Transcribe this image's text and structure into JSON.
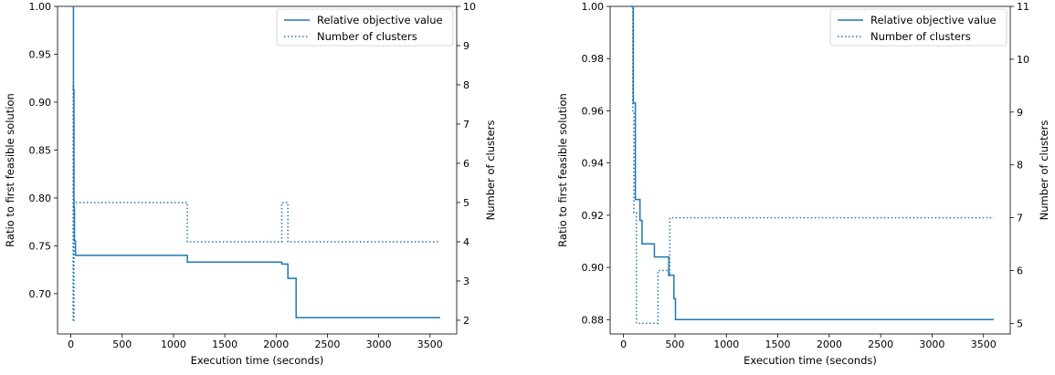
{
  "chart_data": [
    {
      "type": "line",
      "xlabel": "Execution time (seconds)",
      "ylabel": "Ratio to first feasible solution",
      "y2label": "Number of clusters",
      "xlim": [
        -130,
        3760
      ],
      "ylim": [
        0.658,
        1.0
      ],
      "y2lim": [
        1.65,
        10.0
      ],
      "xticks": [
        0,
        500,
        1000,
        1500,
        2000,
        2500,
        3000,
        3500
      ],
      "yticks": [
        0.7,
        0.75,
        0.8,
        0.85,
        0.9,
        0.95,
        1.0
      ],
      "y2ticks": [
        2,
        3,
        4,
        5,
        6,
        7,
        8,
        9,
        10
      ],
      "legend_position": "top-right",
      "color": "#1f77b4",
      "series": [
        {
          "name": "Relative objective value",
          "axis": "left",
          "style": "solid",
          "step": true,
          "points": [
            [
              20,
              1.0
            ],
            [
              25,
              0.913
            ],
            [
              30,
              0.79
            ],
            [
              35,
              0.755
            ],
            [
              45,
              0.74
            ],
            [
              1130,
              0.74
            ],
            [
              1135,
              0.733
            ],
            [
              2050,
              0.733
            ],
            [
              2055,
              0.731
            ],
            [
              2110,
              0.731
            ],
            [
              2115,
              0.716
            ],
            [
              2190,
              0.716
            ],
            [
              2195,
              0.675
            ],
            [
              3600,
              0.675
            ]
          ]
        },
        {
          "name": "Number of clusters",
          "axis": "right",
          "style": "dotted",
          "step": true,
          "points": [
            [
              20,
              2
            ],
            [
              22,
              8
            ],
            [
              26,
              2
            ],
            [
              30,
              5
            ],
            [
              1130,
              5
            ],
            [
              1135,
              4
            ],
            [
              2050,
              4
            ],
            [
              2055,
              5
            ],
            [
              2110,
              5
            ],
            [
              2115,
              4
            ],
            [
              3600,
              4
            ]
          ]
        }
      ]
    },
    {
      "type": "line",
      "xlabel": "Execution time (seconds)",
      "ylabel": "Ratio to first feasible solution",
      "y2label": "Number of clusters",
      "xlim": [
        -130,
        3760
      ],
      "ylim": [
        0.8745,
        1.0
      ],
      "y2lim": [
        4.8,
        11.0
      ],
      "xticks": [
        0,
        500,
        1000,
        1500,
        2000,
        2500,
        3000,
        3500
      ],
      "yticks": [
        0.88,
        0.9,
        0.92,
        0.94,
        0.96,
        0.98,
        1.0
      ],
      "y2ticks": [
        5,
        6,
        7,
        8,
        9,
        10,
        11
      ],
      "legend_position": "top-right",
      "color": "#1f77b4",
      "series": [
        {
          "name": "Relative objective value",
          "axis": "left",
          "style": "solid",
          "step": true,
          "points": [
            [
              70,
              1.0
            ],
            [
              95,
              0.963
            ],
            [
              115,
              0.926
            ],
            [
              160,
              0.918
            ],
            [
              180,
              0.909
            ],
            [
              300,
              0.904
            ],
            [
              440,
              0.897
            ],
            [
              490,
              0.888
            ],
            [
              505,
              0.88
            ],
            [
              3600,
              0.88
            ]
          ]
        },
        {
          "name": "Number of clusters",
          "axis": "right",
          "style": "dotted",
          "step": true,
          "points": [
            [
              70,
              11
            ],
            [
              90,
              9
            ],
            [
              100,
              7.1
            ],
            [
              125,
              5
            ],
            [
              330,
              5
            ],
            [
              335,
              6
            ],
            [
              430,
              6
            ],
            [
              440,
              5.9
            ],
            [
              450,
              7
            ],
            [
              3600,
              7
            ]
          ]
        }
      ]
    }
  ]
}
